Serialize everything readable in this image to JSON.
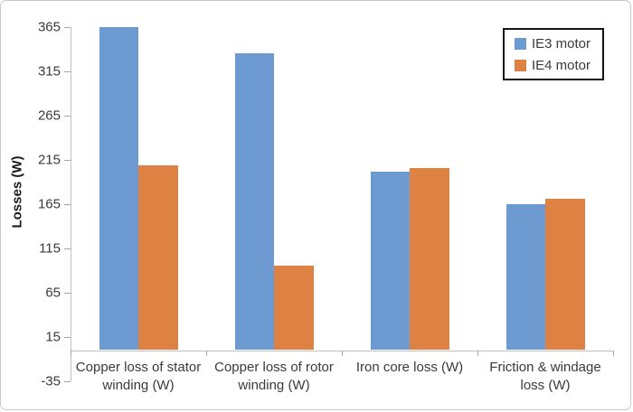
{
  "chart_data": {
    "type": "bar",
    "title": "",
    "xlabel": "",
    "ylabel": "Losses (W)",
    "categories": [
      "Copper loss of stator winding (W)",
      "Copper loss of rotor winding (W)",
      "Iron core loss (W)",
      "Friction &  windage loss (W)"
    ],
    "series": [
      {
        "name": "IE3 motor",
        "color": "#6C9AD1",
        "values": [
          365,
          336,
          202,
          165
        ]
      },
      {
        "name": "IE4 motor",
        "color": "#DE8244",
        "values": [
          209,
          96,
          206,
          171
        ]
      }
    ],
    "y_ticks": [
      365,
      315,
      265,
      215,
      165,
      115,
      65,
      15,
      -35
    ],
    "ylim": [
      -35,
      365
    ],
    "bar_base": 0,
    "grid": false,
    "legend_position": "top-right"
  },
  "colors": {
    "axis_line": "#bfbfbf",
    "tick_text": "#3a3a3a",
    "legend_border": "#141414",
    "frame_border": "#c9c9c9",
    "background": "#ffffff"
  }
}
